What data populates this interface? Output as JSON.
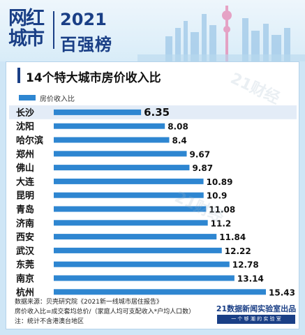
{
  "header": {
    "logo_lines": [
      "网红",
      "城市"
    ],
    "year": "2021",
    "rank_title": "百强榜"
  },
  "colors": {
    "bar": "#2e86d1",
    "highlight_row": "#e3ecf7",
    "brand": "#1a3f86"
  },
  "watermark": "21财经",
  "chart_data": {
    "type": "bar",
    "orientation": "horizontal",
    "title": "14个特大城市房价收入比",
    "legend": [
      "房价收入比"
    ],
    "legend_position": "top-left",
    "series": [
      {
        "name": "房价收入比",
        "values": [
          6.35,
          8.08,
          8.4,
          9.67,
          9.87,
          10.89,
          10.9,
          11.08,
          11.2,
          11.84,
          12.22,
          12.78,
          13.14,
          15.43
        ]
      }
    ],
    "categories": [
      "长沙",
      "沈阳",
      "哈尔滨",
      "郑州",
      "佛山",
      "大连",
      "昆明",
      "青岛",
      "济南",
      "西安",
      "武汉",
      "东莞",
      "南京",
      "杭州"
    ],
    "value_labels": [
      "6.35",
      "8.08",
      "8.4",
      "9.67",
      "9.87",
      "10.89",
      "10.9",
      "11.08",
      "11.2",
      "11.84",
      "12.22",
      "12.78",
      "13.14",
      "15.43"
    ],
    "highlighted_category": "长沙",
    "grid": false
  },
  "footnotes": [
    "数据来源：贝壳研究院《2021新一线城市居住报告》",
    "房价收入比=成交套均总价/（家庭人均可支配收入*户均人口数）",
    "注：统计不含港澳台地区"
  ],
  "brand": {
    "name": "21数据新闻实验室出品",
    "tagline": "一 个 够 潮 的 实 验 室"
  }
}
